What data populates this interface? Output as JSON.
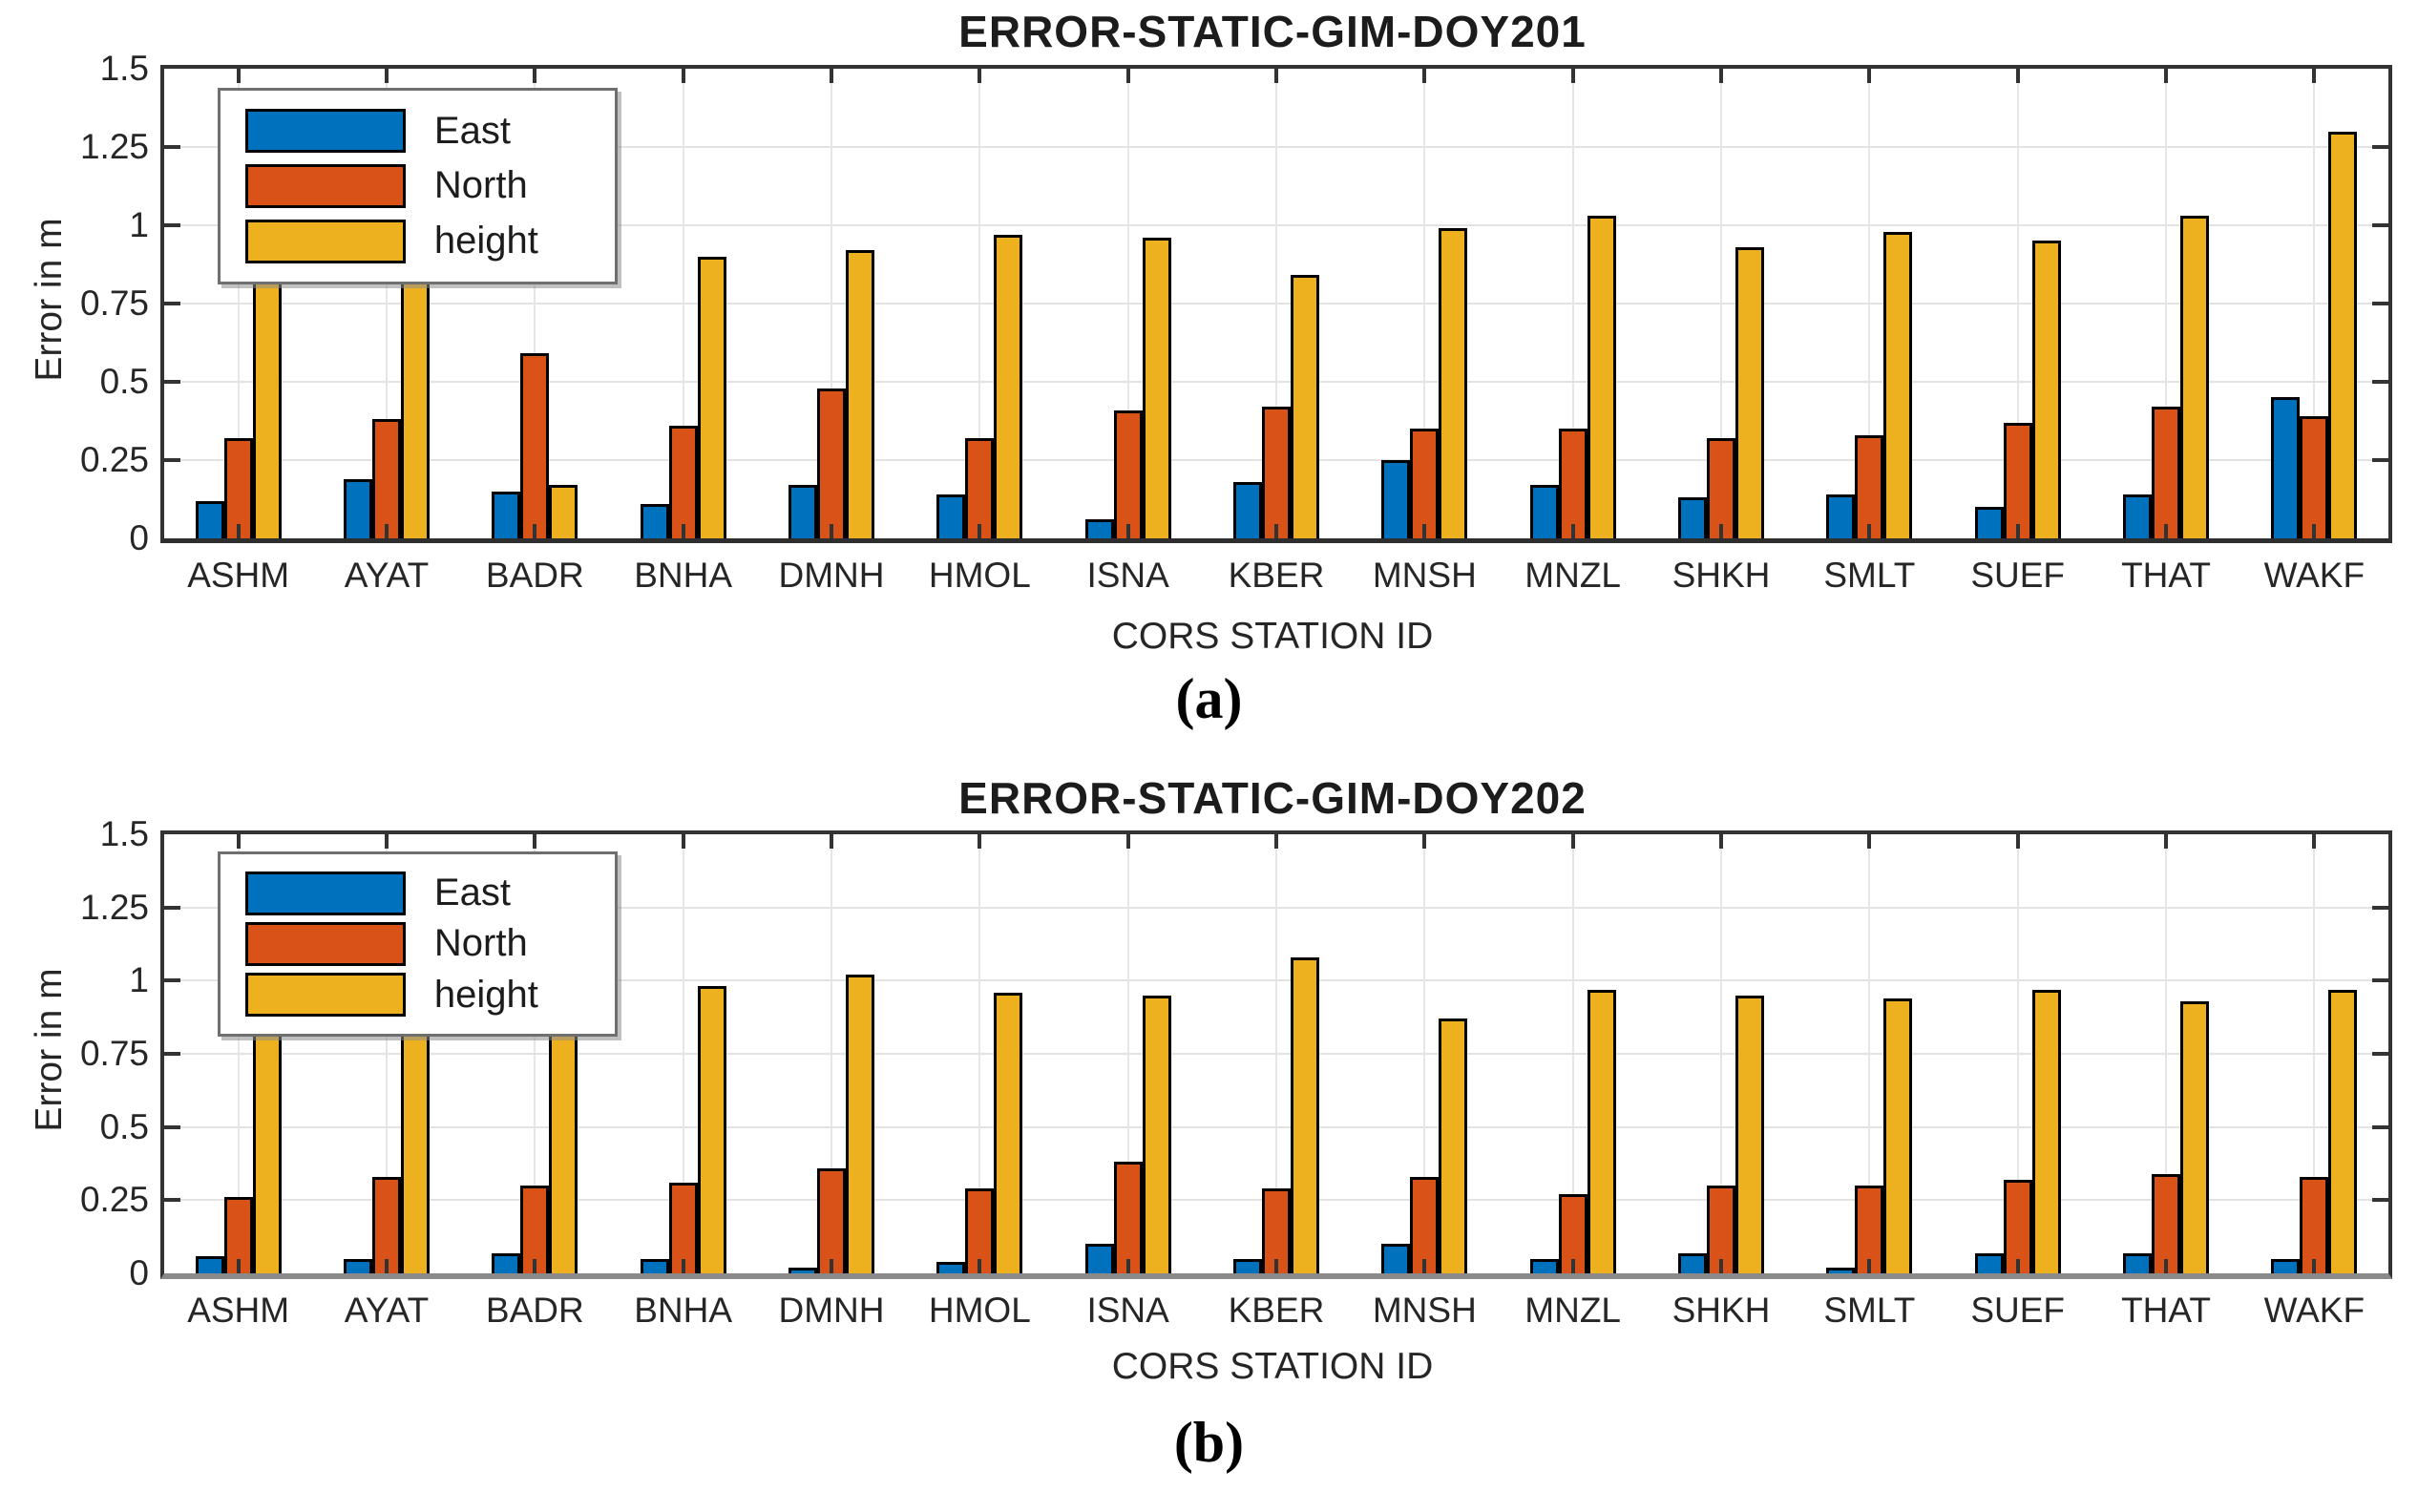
{
  "figure": {
    "background": "#ffffff",
    "colors": {
      "east": "#0072BD",
      "north": "#D95319",
      "height": "#EDB120",
      "grid": "#E3E3E3",
      "axis": "#333333",
      "bar_edge": "#000000"
    }
  },
  "chart_data": [
    {
      "type": "bar",
      "title": "ERROR-STATIC-GIM-DOY201",
      "caption": "(a)",
      "xlabel": "CORS STATION ID",
      "ylabel": "Error in m",
      "ylim": [
        0,
        1.5
      ],
      "yticks": [
        0,
        0.25,
        0.5,
        0.75,
        1,
        1.25,
        1.5
      ],
      "ytick_labels": [
        "0",
        "0.25",
        "0.5",
        "0.75",
        "1",
        "1.25",
        "1.5"
      ],
      "grid": true,
      "legend_position": "top-left",
      "categories": [
        "ASHM",
        "AYAT",
        "BADR",
        "BNHA",
        "DMNH",
        "HMOL",
        "ISNA",
        "KBER",
        "MNSH",
        "MNZL",
        "SHKH",
        "SMLT",
        "SUEF",
        "THAT",
        "WAKF"
      ],
      "series": [
        {
          "name": "East",
          "color": "#0072BD",
          "values": [
            0.12,
            0.19,
            0.15,
            0.11,
            0.17,
            0.14,
            0.06,
            0.18,
            0.25,
            0.17,
            0.13,
            0.14,
            0.1,
            0.14,
            0.45
          ]
        },
        {
          "name": "North",
          "color": "#D95319",
          "values": [
            0.32,
            0.38,
            0.59,
            0.36,
            0.48,
            0.32,
            0.41,
            0.42,
            0.35,
            0.35,
            0.32,
            0.33,
            0.37,
            0.42,
            0.39
          ]
        },
        {
          "name": "height",
          "color": "#EDB120",
          "values": [
            0.95,
            0.97,
            0.17,
            0.9,
            0.92,
            0.97,
            0.96,
            0.84,
            0.99,
            1.03,
            0.93,
            0.98,
            0.95,
            1.03,
            1.3
          ]
        }
      ]
    },
    {
      "type": "bar",
      "title": "ERROR-STATIC-GIM-DOY202",
      "caption": "(b)",
      "xlabel": "CORS STATION ID",
      "ylabel": "Error in m",
      "ylim": [
        0,
        1.5
      ],
      "yticks": [
        0,
        0.25,
        0.5,
        0.75,
        1,
        1.25,
        1.5
      ],
      "ytick_labels": [
        "0",
        "0.25",
        "0.5",
        "0.75",
        "1",
        "1.25",
        "1.5"
      ],
      "grid": true,
      "legend_position": "top-left",
      "categories": [
        "ASHM",
        "AYAT",
        "BADR",
        "BNHA",
        "DMNH",
        "HMOL",
        "ISNA",
        "KBER",
        "MNSH",
        "MNZL",
        "SHKH",
        "SMLT",
        "SUEF",
        "THAT",
        "WAKF"
      ],
      "series": [
        {
          "name": "East",
          "color": "#0072BD",
          "values": [
            0.06,
            0.05,
            0.07,
            0.05,
            0.02,
            0.04,
            0.1,
            0.05,
            0.1,
            0.05,
            0.07,
            0.02,
            0.07,
            0.07,
            0.05
          ]
        },
        {
          "name": "North",
          "color": "#D95319",
          "values": [
            0.26,
            0.33,
            0.3,
            0.31,
            0.36,
            0.29,
            0.38,
            0.29,
            0.33,
            0.27,
            0.3,
            0.3,
            0.32,
            0.34,
            0.33
          ]
        },
        {
          "name": "height",
          "color": "#EDB120",
          "values": [
            0.93,
            0.95,
            0.94,
            0.98,
            1.02,
            0.96,
            0.95,
            1.08,
            0.87,
            0.97,
            0.95,
            0.94,
            0.97,
            0.93,
            0.97
          ]
        }
      ]
    }
  ]
}
